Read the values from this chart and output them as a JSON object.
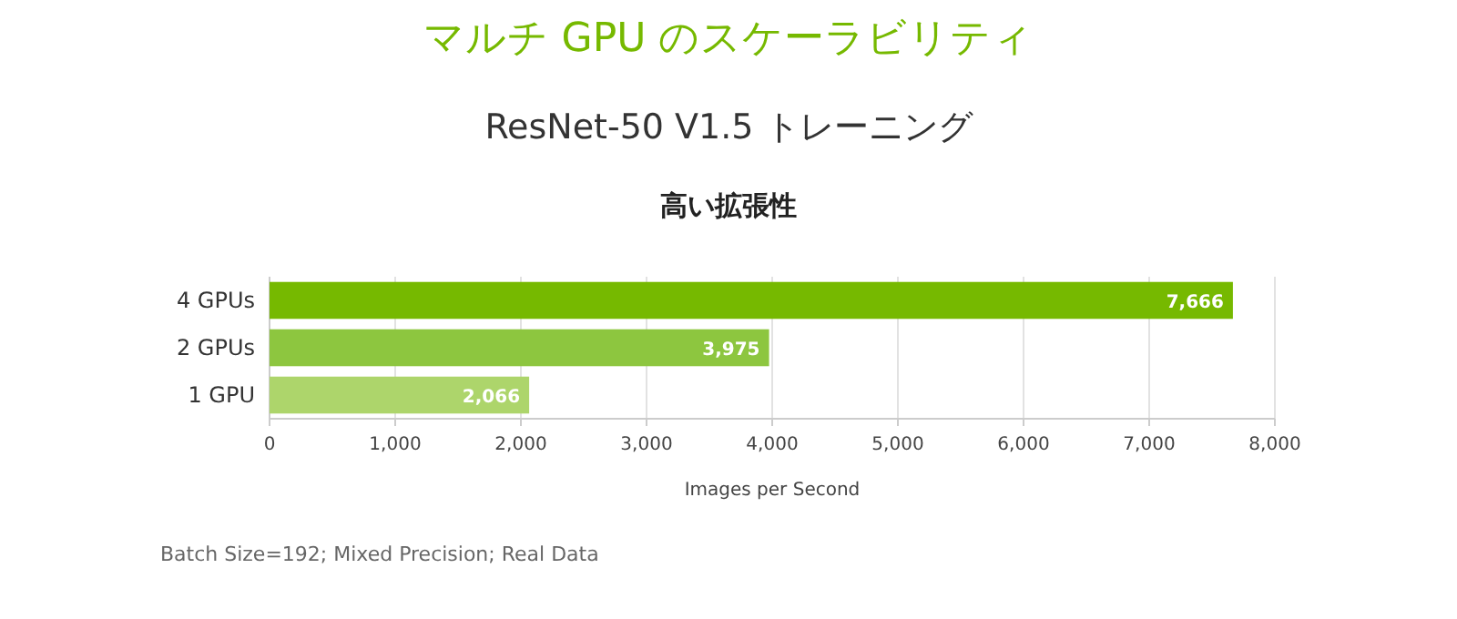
{
  "chart_data": {
    "type": "bar",
    "orientation": "horizontal",
    "title": "マルチ GPU のスケーラビリティ",
    "subtitle": "ResNet-50 V1.5 トレーニング",
    "annotations": [
      "高い拡張性",
      "Batch Size=192; Mixed Precision; Real Data"
    ],
    "categories": [
      "4 GPUs",
      "2 GPUs",
      "1 GPU"
    ],
    "values": [
      7666,
      3975,
      2066
    ],
    "value_labels": [
      "7,666",
      "3,975",
      "2,066"
    ],
    "colors": [
      "#76b900",
      "#8dc63f",
      "#add56b"
    ],
    "xlabel": "Images per Second",
    "xlim": [
      0,
      8000
    ],
    "xticks": [
      {
        "value": 0,
        "label": "0"
      },
      {
        "value": 1000,
        "label": "1,000"
      },
      {
        "value": 2000,
        "label": "2,000"
      },
      {
        "value": 3000,
        "label": "3,000"
      },
      {
        "value": 4000,
        "label": "4,000"
      },
      {
        "value": 5000,
        "label": "5,000"
      },
      {
        "value": 6000,
        "label": "6,000"
      },
      {
        "value": 7000,
        "label": "7,000"
      },
      {
        "value": 8000,
        "label": "8,000"
      }
    ],
    "grid": "x"
  }
}
